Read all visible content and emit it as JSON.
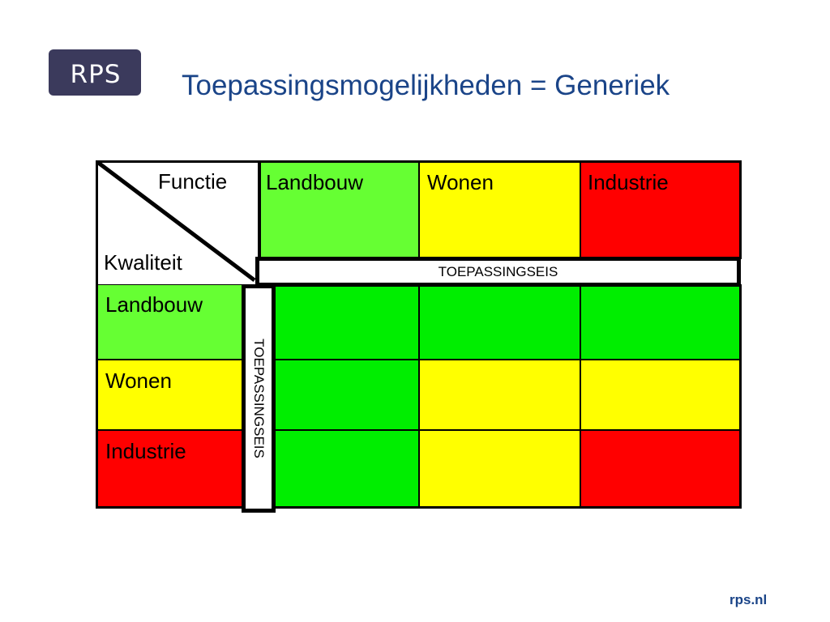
{
  "logo": {
    "text": "RPS"
  },
  "title": "Toepassingsmogelijkheden = Generiek",
  "footer": "rps.nl",
  "matrix": {
    "corner_top": "Functie",
    "corner_bottom": "Kwaliteit",
    "columns": [
      "Landbouw",
      "Wonen",
      "Industrie"
    ],
    "rows": [
      "Landbouw",
      "Wonen",
      "Industrie"
    ],
    "band_horizontal": "TOEPASSINGSEIS",
    "band_vertical": "TOEPASSINGSEIS",
    "cell_colors": [
      [
        "green",
        "green",
        "green"
      ],
      [
        "green",
        "yellow",
        "yellow"
      ],
      [
        "green",
        "yellow",
        "red"
      ]
    ]
  },
  "colors": {
    "title": "#1a4488",
    "logo_bg": "#3b3a5c",
    "green": "#00ee00",
    "light_green": "#66ff33",
    "yellow": "#ffff00",
    "red": "#ff0000"
  }
}
